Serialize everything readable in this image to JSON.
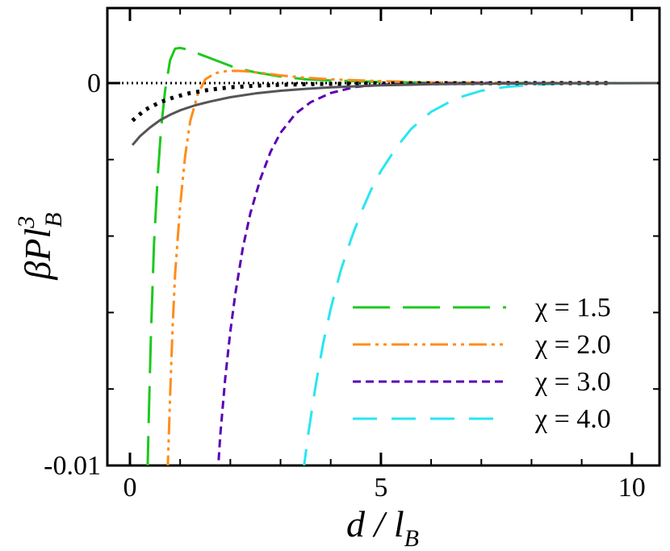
{
  "chart_data": {
    "type": "line",
    "title": "",
    "xlabel": {
      "main": "d / l",
      "sub": "B"
    },
    "ylabel": {
      "main": "βPl",
      "sup": "3",
      "sub": "B"
    },
    "xlim": [
      -0.45,
      10.55
    ],
    "ylim": [
      -0.01,
      0.002
    ],
    "x_ticks": [
      0,
      5,
      10
    ],
    "x_tick_labels": [
      "0",
      "5",
      "10"
    ],
    "y_ticks": [
      -0.01,
      0
    ],
    "y_tick_labels": [
      "-0.01",
      "0"
    ],
    "legend_position": "bottom-right",
    "reference_line": {
      "y": 0,
      "style": "dotted",
      "color": "#000000"
    },
    "series": [
      {
        "name": "χ = 1.5",
        "color": "#1ec81e",
        "dash": "46 16",
        "in_legend": true,
        "x": [
          0.35,
          0.38,
          0.42,
          0.48,
          0.55,
          0.62,
          0.7,
          0.8,
          0.9,
          1.0,
          1.1,
          1.3,
          1.5,
          1.8,
          2.1,
          2.5,
          3.0,
          3.5,
          4.0,
          5.0,
          6.0,
          7.0,
          8.0,
          9.0,
          10.0,
          10.5
        ],
        "y": [
          -0.0102,
          -0.0085,
          -0.0065,
          -0.0042,
          -0.0025,
          -0.0012,
          -0.0002,
          0.0006,
          0.0009,
          0.00092,
          0.00089,
          0.0008,
          0.0007,
          0.00055,
          0.0004,
          0.00028,
          0.00017,
          0.0001,
          7e-05,
          3e-05,
          1e-05,
          5e-06,
          3e-06,
          1e-06,
          5e-07,
          0.0
        ]
      },
      {
        "name": "χ = 2.0",
        "color": "#ff8c1a",
        "dash": "22 6 4 6 4 6",
        "in_legend": true,
        "x": [
          0.75,
          0.8,
          0.85,
          0.9,
          1.0,
          1.1,
          1.2,
          1.35,
          1.5,
          1.7,
          1.9,
          2.1,
          2.3,
          2.6,
          3.0,
          3.5,
          4.0,
          5.0,
          6.0,
          7.0,
          8.0,
          10.0,
          10.5
        ],
        "y": [
          -0.0102,
          -0.0082,
          -0.0064,
          -0.005,
          -0.0032,
          -0.0019,
          -0.001,
          -0.0003,
          0.0001,
          0.00026,
          0.00031,
          0.00032,
          0.00031,
          0.00027,
          0.0002,
          0.00014,
          0.0001,
          5e-05,
          2e-05,
          1e-05,
          5e-06,
          1e-06,
          0.0
        ]
      },
      {
        "name": "χ = 3.0",
        "color": "#5a00b4",
        "dash": "10 6",
        "in_legend": true,
        "x": [
          1.75,
          1.8,
          1.9,
          2.0,
          2.1,
          2.25,
          2.4,
          2.6,
          2.8,
          3.0,
          3.3,
          3.6,
          4.0,
          4.5,
          5.0,
          6.0,
          7.0,
          8.0,
          9.0,
          10.0,
          10.5
        ],
        "y": [
          -0.0102,
          -0.0092,
          -0.0077,
          -0.0065,
          -0.0055,
          -0.0043,
          -0.0034,
          -0.0025,
          -0.0018,
          -0.0013,
          -0.0008,
          -0.0005,
          -0.00026,
          -0.0001,
          -4e-05,
          -1e-05,
          0.0,
          0.0,
          0.0,
          0.0,
          0.0
        ]
      },
      {
        "name": "χ = 4.0",
        "color": "#28e6f0",
        "dash": "30 18",
        "in_legend": true,
        "x": [
          3.45,
          3.55,
          3.7,
          3.85,
          4.0,
          4.2,
          4.4,
          4.6,
          4.8,
          5.0,
          5.3,
          5.6,
          6.0,
          6.5,
          7.0,
          7.5,
          8.0,
          8.5,
          9.0,
          9.5,
          10.0,
          10.5
        ],
        "y": [
          -0.0102,
          -0.0092,
          -0.0079,
          -0.0068,
          -0.0059,
          -0.0049,
          -0.0041,
          -0.0034,
          -0.0028,
          -0.0023,
          -0.0017,
          -0.0012,
          -0.00075,
          -0.0004,
          -0.0002,
          -0.0001,
          -5e-05,
          -2e-05,
          -1e-05,
          -5e-06,
          0.0,
          0.0
        ]
      },
      {
        "name": "",
        "color": "#000000",
        "dash": "4 7",
        "width": 5,
        "in_legend": false,
        "x": [
          0.05,
          0.3,
          0.6,
          0.9,
          1.2,
          1.6,
          2.0,
          2.5,
          3.0,
          3.5,
          4.0,
          5.0,
          6.0,
          7.0,
          8.0,
          9.0,
          9.6
        ],
        "y": [
          -0.00098,
          -0.0007,
          -0.0005,
          -0.00036,
          -0.00026,
          -0.00017,
          -0.00011,
          -7e-05,
          -4.5e-05,
          -3e-05,
          -2e-05,
          -1e-05,
          -5e-06,
          -2e-06,
          -1e-06,
          0.0,
          0.0
        ]
      },
      {
        "name": "",
        "color": "#555555",
        "dash": "",
        "width": 3,
        "in_legend": false,
        "x": [
          0.05,
          0.2,
          0.4,
          0.6,
          0.8,
          1.0,
          1.3,
          1.6,
          2.0,
          2.5,
          3.0,
          3.5,
          4.0,
          5.0,
          6.0,
          7.0,
          8.0,
          9.0,
          10.0,
          10.5
        ],
        "y": [
          -0.00162,
          -0.00139,
          -0.00116,
          -0.00097,
          -0.00083,
          -0.00071,
          -0.00058,
          -0.00048,
          -0.00037,
          -0.00027,
          -0.0002,
          -0.00015,
          -0.00011,
          -6e-05,
          -3e-05,
          -1.5e-05,
          -8e-06,
          -4e-06,
          -2e-06,
          -1e-06
        ]
      }
    ]
  }
}
